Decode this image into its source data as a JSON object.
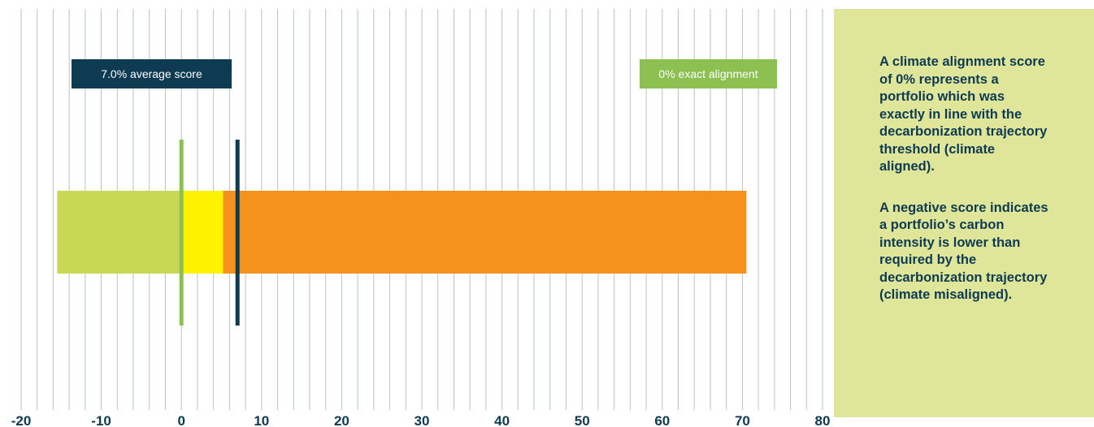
{
  "colors": {
    "navy": "#0e3a52",
    "green_marker": "#8cc152",
    "aligned_green": "#c8d855",
    "yellow": "#fff200",
    "orange": "#f5921e",
    "grid": "#b5c3cc",
    "panel_bg": "#dfe69a"
  },
  "chart_data": {
    "type": "bar",
    "orientation": "horizontal",
    "xlim": [
      -20,
      80
    ],
    "x_ticks": [
      "-20",
      "-10",
      "0",
      "10",
      "20",
      "30",
      "40",
      "50",
      "60",
      "70",
      "80"
    ],
    "grid": "vertical minor lines every 2 units",
    "segments": [
      {
        "name": "aligned",
        "from": -15.5,
        "to": 0,
        "color": "#c8d855"
      },
      {
        "name": "near",
        "from": 0,
        "to": 5.2,
        "color": "#fff200"
      },
      {
        "name": "misaligned",
        "from": 5.2,
        "to": 70.5,
        "color": "#f5921e"
      }
    ],
    "markers": [
      {
        "name": "exact",
        "value": 0,
        "color": "#8cc152",
        "label": "0% exact alignment"
      },
      {
        "name": "average",
        "value": 7.0,
        "color": "#0e3a52",
        "label": "7.0% average score"
      }
    ]
  },
  "note": {
    "paragraph1": "A climate alignment score of 0% represents a portfolio which was exactly in line with the decarbonization trajectory threshold (climate aligned).",
    "paragraph2": "A negative score indicates a portfolio’s carbon intensity is lower than required by the decarbonization trajectory (climate misaligned)."
  }
}
